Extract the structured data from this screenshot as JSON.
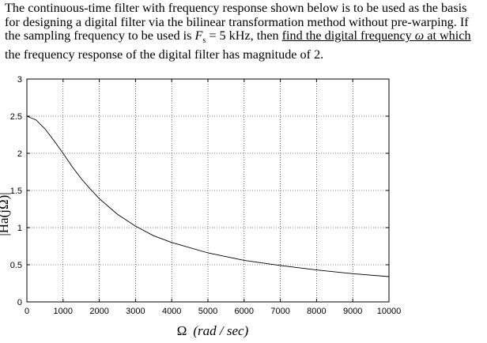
{
  "problem": {
    "p1": "The continuous-time filter with frequency response shown below is to be used as the basis for designing a digital filter via the bilinear transformation method without pre-warping.  If the sampling frequency to be used is ",
    "fs_symbol": "F",
    "fs_sub": "s",
    "p2": " = 5 kHz, then ",
    "p3": "find the digital frequency ",
    "omega": "ω",
    "p4": " at which",
    "p5": " the frequency response of the  digital filter has magnitude of 2."
  },
  "chart_data": {
    "type": "line",
    "title": "",
    "xlabel_symbol": "Ω",
    "xlabel_unit": "(rad / sec)",
    "ylabel": "|Ha(jΩ)|",
    "xlim": [
      0,
      10000
    ],
    "ylim": [
      0,
      3
    ],
    "xticks": [
      0,
      1000,
      2000,
      3000,
      4000,
      5000,
      6000,
      7000,
      8000,
      9000,
      10000
    ],
    "yticks": [
      0,
      0.5,
      1,
      1.5,
      2,
      2.5,
      3
    ],
    "ytick_labels": [
      "0",
      "0.5",
      "1",
      "1.5",
      "2",
      "2.5",
      "3"
    ],
    "grid": true,
    "line_color": "#000000",
    "series": [
      {
        "x": [
          0,
          250,
          500,
          750,
          1000,
          1250,
          1500,
          1750,
          2000,
          2500,
          3000,
          3500,
          4000,
          5000,
          6000,
          7000,
          8000,
          9000,
          10000
        ],
        "y": [
          2.5,
          2.45,
          2.33,
          2.17,
          2.0,
          1.82,
          1.66,
          1.52,
          1.39,
          1.18,
          1.02,
          0.89,
          0.8,
          0.66,
          0.56,
          0.49,
          0.43,
          0.38,
          0.34
        ]
      }
    ]
  }
}
